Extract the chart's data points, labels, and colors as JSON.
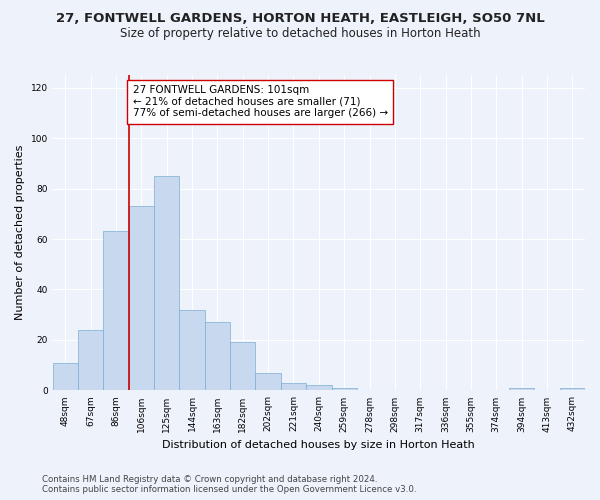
{
  "title1": "27, FONTWELL GARDENS, HORTON HEATH, EASTLEIGH, SO50 7NL",
  "title2": "Size of property relative to detached houses in Horton Heath",
  "xlabel": "Distribution of detached houses by size in Horton Heath",
  "ylabel": "Number of detached properties",
  "footnote1": "Contains HM Land Registry data © Crown copyright and database right 2024.",
  "footnote2": "Contains public sector information licensed under the Open Government Licence v3.0.",
  "bins": [
    "48sqm",
    "67sqm",
    "86sqm",
    "106sqm",
    "125sqm",
    "144sqm",
    "163sqm",
    "182sqm",
    "202sqm",
    "221sqm",
    "240sqm",
    "259sqm",
    "278sqm",
    "298sqm",
    "317sqm",
    "336sqm",
    "355sqm",
    "374sqm",
    "394sqm",
    "413sqm",
    "432sqm"
  ],
  "values": [
    11,
    24,
    63,
    73,
    85,
    32,
    27,
    19,
    7,
    3,
    2,
    1,
    0,
    0,
    0,
    0,
    0,
    0,
    1,
    0,
    1
  ],
  "bar_color": "#c8d9ef",
  "bar_edgecolor": "#7aadd4",
  "bar_width": 1.0,
  "vline_x_idx": 2.5,
  "vline_color": "#cc0000",
  "annotation_text": "27 FONTWELL GARDENS: 101sqm\n← 21% of detached houses are smaller (71)\n77% of semi-detached houses are larger (266) →",
  "annotation_box_edgecolor": "#cc0000",
  "annotation_box_facecolor": "white",
  "ylim": [
    0,
    125
  ],
  "yticks": [
    0,
    20,
    40,
    60,
    80,
    100,
    120
  ],
  "bg_color": "#eef2fb",
  "grid_color": "#ffffff",
  "title1_fontsize": 9.5,
  "title2_fontsize": 8.5,
  "xlabel_fontsize": 8,
  "ylabel_fontsize": 8,
  "tick_fontsize": 6.5,
  "annot_fontsize": 7.5,
  "footnote_fontsize": 6.2
}
